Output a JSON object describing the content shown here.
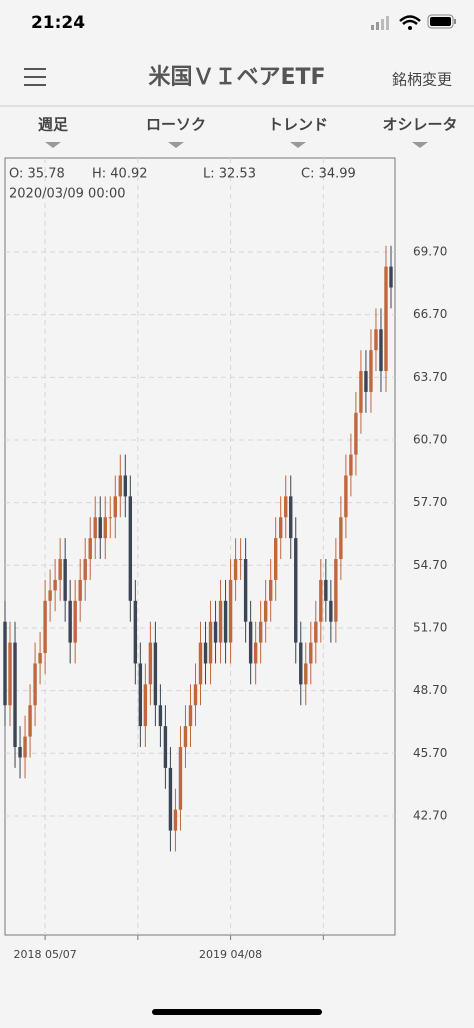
{
  "status_bar": {
    "time": "21:24"
  },
  "header": {
    "title": "米国ＶＩベアETF",
    "action": "銘柄変更"
  },
  "toolbar": [
    "週足",
    "ローソク",
    "トレンド",
    "オシレータ"
  ],
  "chart_data": {
    "type": "candlestick",
    "ohlc_info": [
      "O: 35.78",
      "H: 40.92",
      "L: 32.53",
      "C: 34.99"
    ],
    "date_label": "2020/03/09 00:00",
    "up_color": "#c0673e",
    "down_color": "#3b4555",
    "grid": true,
    "ylim": [
      37.0,
      74.2
    ],
    "yticks": [
      {
        "value": 42.7,
        "label": "42.70"
      },
      {
        "value": 45.7,
        "label": "45.70"
      },
      {
        "value": 48.7,
        "label": "48.70"
      },
      {
        "value": 51.7,
        "label": "51.70"
      },
      {
        "value": 54.7,
        "label": "54.70"
      },
      {
        "value": 57.7,
        "label": "57.70"
      },
      {
        "value": 60.7,
        "label": "60.70"
      },
      {
        "value": 63.7,
        "label": "63.70"
      },
      {
        "value": 66.7,
        "label": "66.70"
      },
      {
        "value": 69.7,
        "label": "69.70"
      }
    ],
    "categories": [
      null,
      null,
      null,
      null,
      null,
      null,
      null,
      null,
      "2018 05/07",
      null,
      null,
      null,
      null,
      null,
      null,
      null,
      null,
      null,
      null,
      null,
      null,
      null,
      null,
      null,
      null,
      null,
      null,
      null,
      null,
      null,
      null,
      null,
      null,
      null,
      null,
      null,
      null,
      null,
      null,
      null,
      null,
      null,
      null,
      null,
      null,
      "2019 04/08",
      null,
      null,
      null,
      null,
      null,
      null,
      null,
      null,
      null,
      null,
      null,
      null,
      null,
      null,
      null,
      null,
      null,
      null,
      null,
      null,
      null,
      null,
      null,
      null,
      null,
      null,
      null,
      null,
      null,
      null,
      null,
      null
    ],
    "open": [
      52,
      48,
      51,
      46,
      45.5,
      46.5,
      48,
      50,
      50.5,
      53,
      53.5,
      54,
      55,
      53,
      51,
      53,
      54,
      55,
      56,
      57,
      56,
      57,
      57,
      58,
      59,
      58,
      53,
      50,
      47,
      49,
      51,
      48,
      47,
      45,
      42,
      43,
      46,
      47,
      48,
      49,
      51,
      50,
      52,
      51,
      53,
      51,
      54,
      55,
      55,
      52,
      50,
      51,
      52,
      53,
      54,
      56,
      57,
      58,
      56,
      51,
      49,
      50,
      51,
      52,
      54,
      53,
      52,
      55,
      57,
      59,
      60,
      62,
      64,
      63,
      65,
      66,
      64,
      69
    ],
    "high": [
      53,
      52,
      52,
      47,
      47.5,
      49,
      51,
      51.5,
      54,
      54.5,
      55,
      56,
      56,
      54,
      54,
      55,
      56,
      57,
      58,
      58,
      58,
      58,
      59,
      60,
      60,
      59,
      54,
      51,
      50,
      52,
      52,
      49,
      48,
      46,
      44,
      47,
      48,
      49,
      50,
      52,
      52,
      53,
      53,
      54,
      54,
      55,
      56,
      56,
      56,
      53,
      52,
      53,
      54,
      55,
      57,
      58,
      59,
      59,
      57,
      52,
      51,
      52,
      53,
      55,
      55,
      54,
      56,
      58,
      60,
      61,
      63,
      65,
      65,
      66,
      67,
      67,
      70,
      70
    ],
    "low": [
      47,
      47,
      45,
      44.5,
      44.5,
      45.5,
      47,
      49,
      49.5,
      52,
      52.5,
      53,
      52,
      50,
      50,
      52,
      53,
      54,
      55,
      55,
      55,
      56,
      56,
      57,
      57,
      52,
      49,
      46,
      46,
      48,
      47,
      46,
      44,
      41,
      41,
      42,
      45,
      46,
      47,
      48,
      49,
      49,
      50,
      50,
      50,
      50,
      53,
      54,
      51,
      49,
      49,
      50,
      51,
      52,
      53,
      55,
      56,
      55,
      50,
      48,
      48,
      49,
      50,
      51,
      52,
      51,
      51,
      54,
      56,
      58,
      59,
      61,
      62,
      62,
      64,
      63,
      63,
      67
    ],
    "close": [
      48,
      51,
      46,
      45.5,
      46.5,
      48,
      50,
      50.5,
      53,
      53.5,
      54,
      55,
      53,
      51,
      53,
      54,
      55,
      56,
      57,
      56,
      57,
      57,
      58,
      59,
      58,
      53,
      50,
      47,
      49,
      51,
      48,
      47,
      45,
      42,
      43,
      46,
      47,
      48,
      49,
      51,
      50,
      52,
      51,
      53,
      51,
      54,
      55,
      55,
      52,
      50,
      51,
      52,
      53,
      54,
      56,
      57,
      58,
      56,
      51,
      49,
      50,
      51,
      52,
      54,
      53,
      52,
      55,
      57,
      59,
      60,
      62,
      64,
      63,
      65,
      66,
      64,
      69,
      68
    ]
  }
}
